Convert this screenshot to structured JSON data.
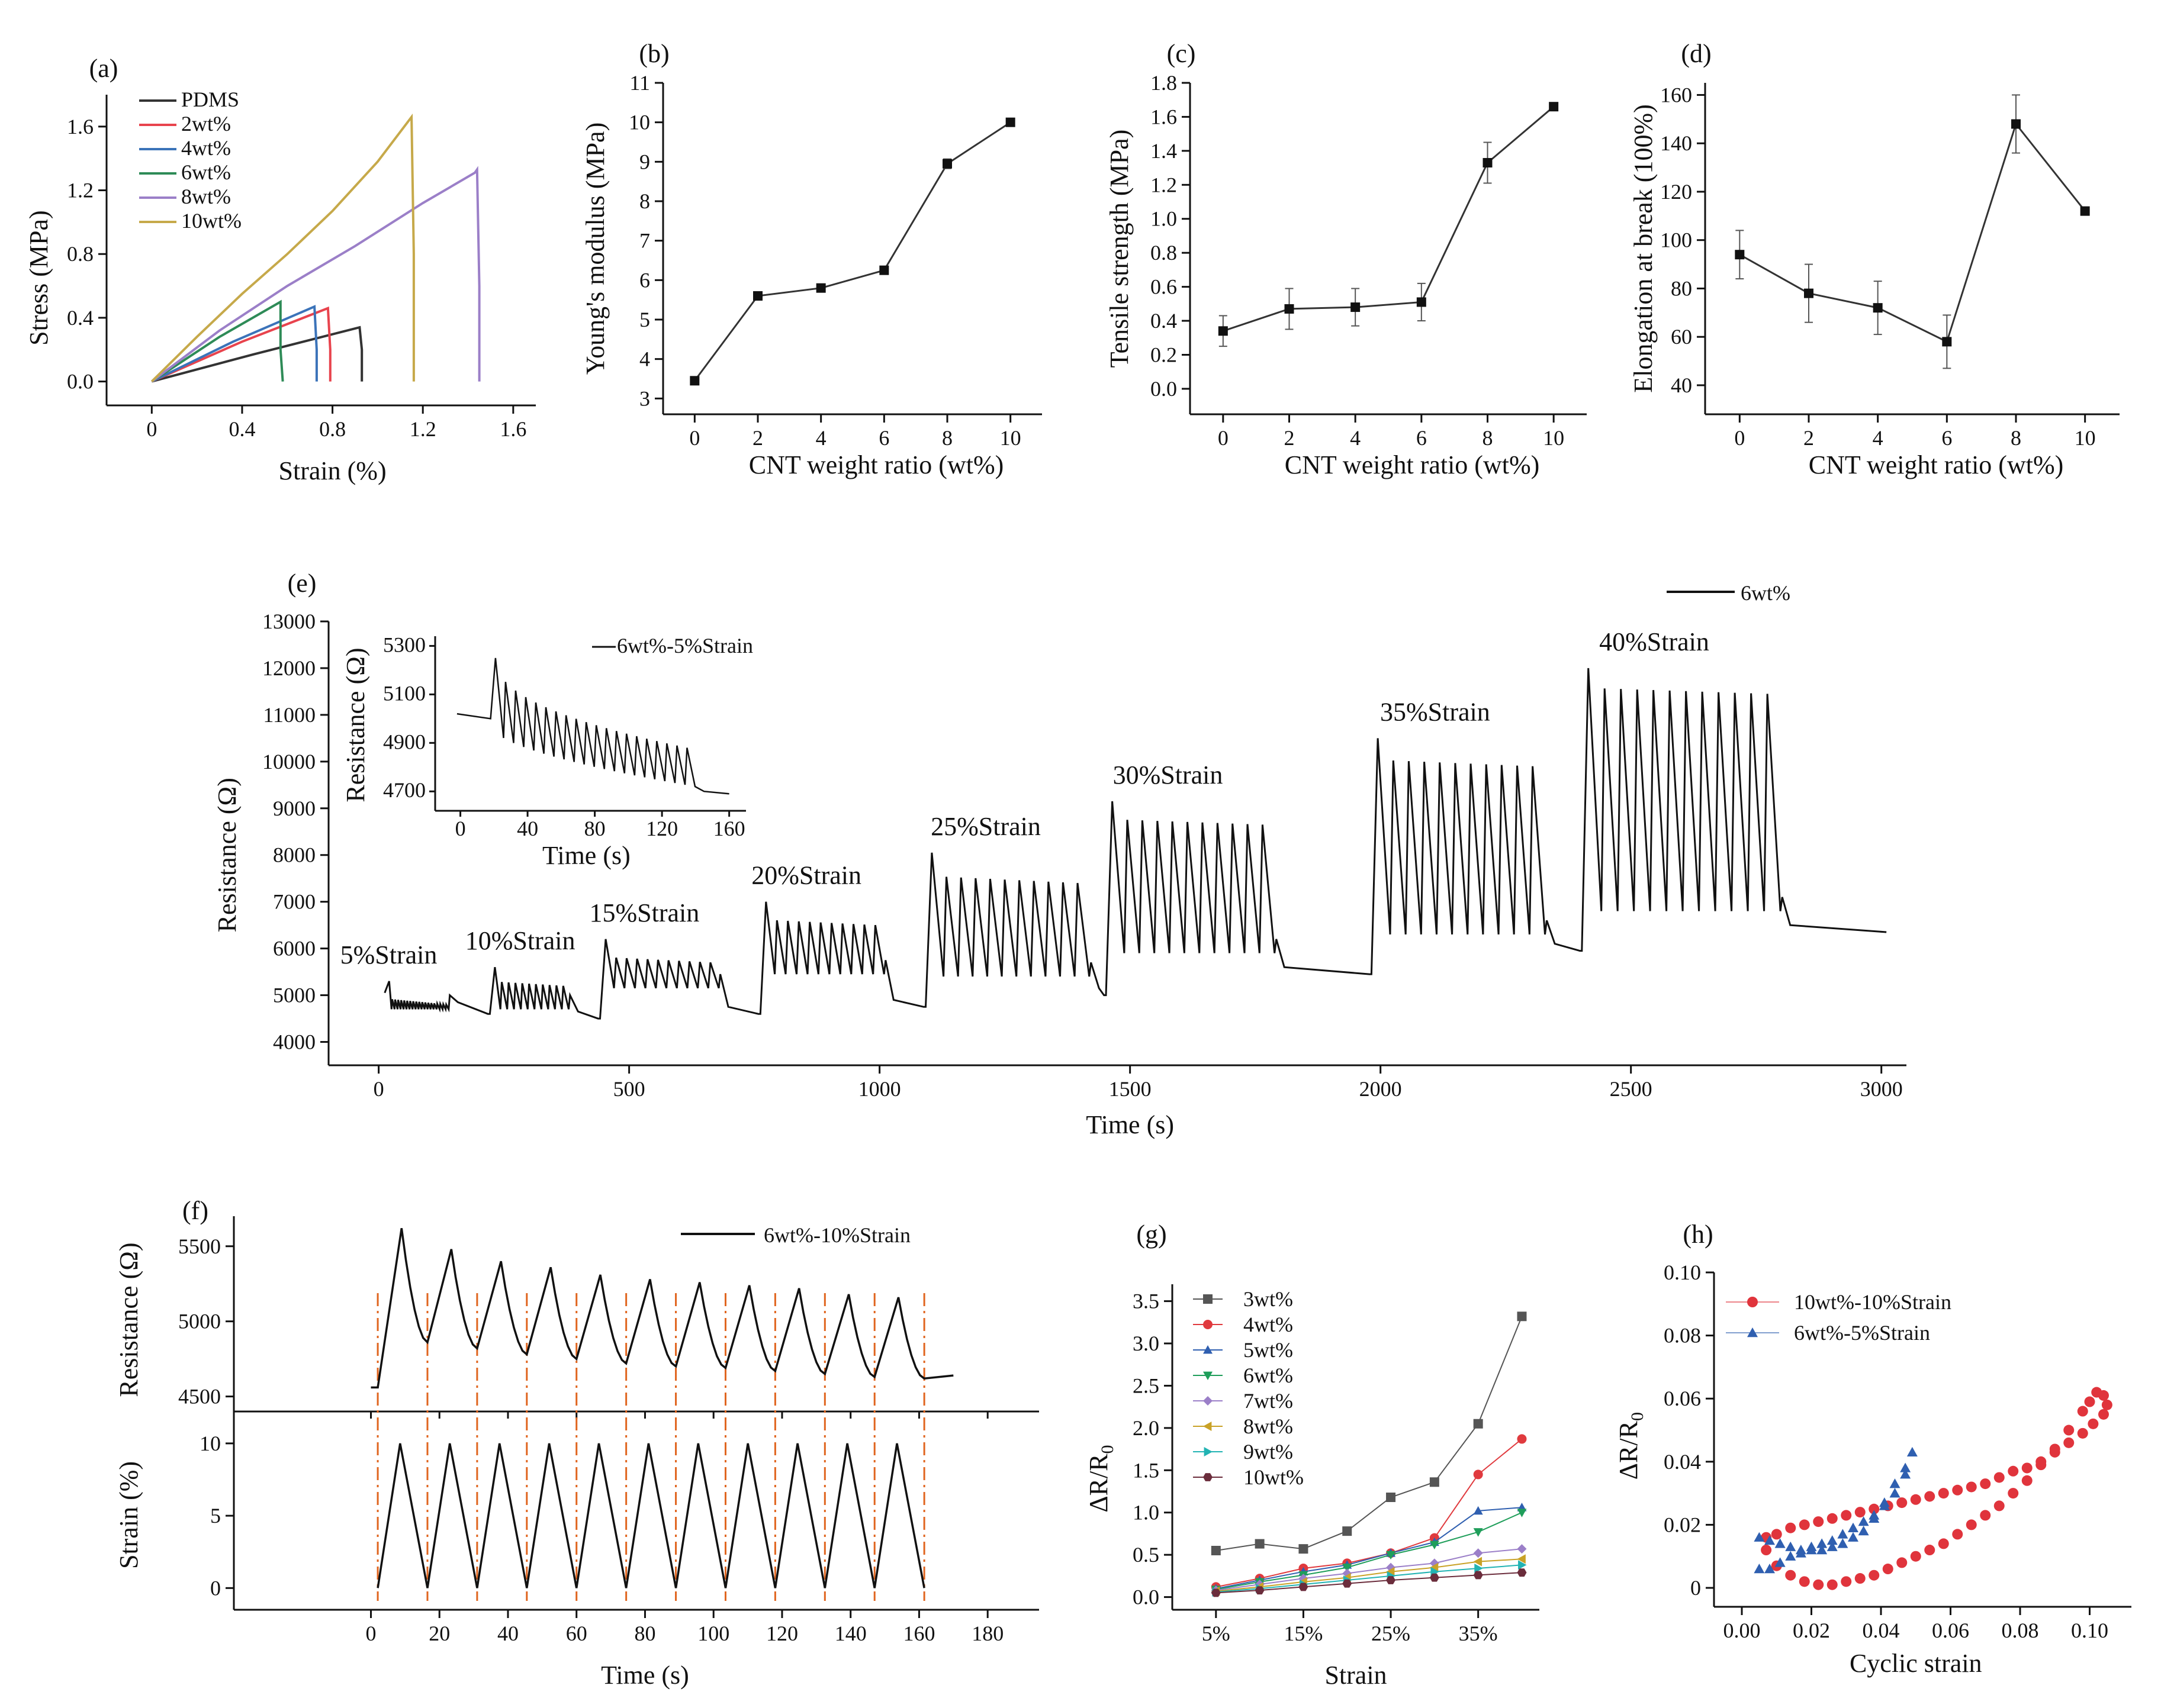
{
  "chart_data": [
    {
      "id": "a",
      "type": "line",
      "panel_label": "(a)",
      "xlabel": "Strain (%)",
      "ylabel": "Stress (MPa)",
      "xlim": [
        -0.2,
        1.7
      ],
      "ylim": [
        -0.15,
        1.8
      ],
      "xticks": [
        0,
        0.4,
        0.8,
        1.2,
        1.6
      ],
      "xtick_labels": [
        "0",
        "0.4",
        "0.8",
        "1.2",
        "1.6"
      ],
      "yticks": [
        0,
        0.4,
        0.8,
        1.2,
        1.6
      ],
      "ytick_labels": [
        "0.0",
        "0.4",
        "0.8",
        "1.2",
        "1.6"
      ],
      "series": [
        {
          "name": "PDMS",
          "color": "#333333",
          "x": [
            0,
            0.45,
            0.92,
            0.93,
            0.93
          ],
          "y": [
            0,
            0.17,
            0.34,
            0.2,
            0
          ]
        },
        {
          "name": "2wt%",
          "color": "#e8434d",
          "x": [
            0,
            0.4,
            0.78,
            0.79,
            0.79
          ],
          "y": [
            0,
            0.25,
            0.46,
            0.2,
            0
          ]
        },
        {
          "name": "4wt%",
          "color": "#3b73b9",
          "x": [
            0,
            0.36,
            0.72,
            0.73,
            0.73
          ],
          "y": [
            0,
            0.25,
            0.47,
            0.2,
            0
          ]
        },
        {
          "name": "6wt%",
          "color": "#2e8b57",
          "x": [
            0,
            0.3,
            0.57,
            0.57,
            0.58
          ],
          "y": [
            0,
            0.28,
            0.5,
            0.2,
            0
          ]
        },
        {
          "name": "8wt%",
          "color": "#9b7fc8",
          "x": [
            0,
            0.3,
            0.6,
            0.9,
            1.2,
            1.43,
            1.44,
            1.45,
            1.45
          ],
          "y": [
            0,
            0.32,
            0.6,
            0.85,
            1.12,
            1.31,
            1.33,
            0.6,
            0
          ]
        },
        {
          "name": "10wt%",
          "color": "#c6a94a",
          "x": [
            0,
            0.2,
            0.4,
            0.6,
            0.8,
            1.0,
            1.15,
            1.16,
            1.16
          ],
          "y": [
            0,
            0.28,
            0.55,
            0.8,
            1.07,
            1.38,
            1.66,
            0.8,
            0
          ]
        }
      ]
    },
    {
      "id": "b",
      "type": "line",
      "panel_label": "(b)",
      "xlabel": "CNT weight ratio (wt%)",
      "ylabel": "Young's modulus (MPa)",
      "xlim": [
        -1,
        11
      ],
      "ylim": [
        2.6,
        11
      ],
      "xticks": [
        0,
        2,
        4,
        6,
        8,
        10
      ],
      "xtick_labels": [
        "0",
        "2",
        "4",
        "6",
        "8",
        "10"
      ],
      "yticks": [
        3,
        4,
        5,
        6,
        7,
        8,
        9,
        10,
        11
      ],
      "ytick_labels": [
        "3",
        "4",
        "5",
        "6",
        "7",
        "8",
        "9",
        "10",
        "11"
      ],
      "x": [
        0,
        2,
        4,
        6,
        8,
        10
      ],
      "y": [
        3.45,
        5.6,
        5.8,
        6.25,
        8.95,
        10.0
      ],
      "err": [
        0.08,
        0.1,
        0.1,
        0.1,
        0.12,
        0.03
      ]
    },
    {
      "id": "c",
      "type": "line",
      "panel_label": "(c)",
      "xlabel": "CNT weight ratio (wt%)",
      "ylabel": "Tensile strength (MPa)",
      "xlim": [
        -1,
        11
      ],
      "ylim": [
        -0.15,
        1.8
      ],
      "xticks": [
        0,
        2,
        4,
        6,
        8,
        10
      ],
      "xtick_labels": [
        "0",
        "2",
        "4",
        "6",
        "8",
        "10"
      ],
      "yticks": [
        0,
        0.2,
        0.4,
        0.6,
        0.8,
        1.0,
        1.2,
        1.4,
        1.6,
        1.8
      ],
      "ytick_labels": [
        "0.0",
        "0.2",
        "0.4",
        "0.6",
        "0.8",
        "1.0",
        "1.2",
        "1.4",
        "1.6",
        "1.8"
      ],
      "x": [
        0,
        2,
        4,
        6,
        8,
        10
      ],
      "y": [
        0.34,
        0.47,
        0.48,
        0.51,
        1.33,
        1.66
      ],
      "err": [
        0.09,
        0.12,
        0.11,
        0.11,
        0.12,
        0.02
      ]
    },
    {
      "id": "d",
      "type": "line",
      "panel_label": "(d)",
      "xlabel": "CNT weight ratio (wt%)",
      "ylabel": "Elongation at break (100%)",
      "xlim": [
        -1,
        11
      ],
      "ylim": [
        28,
        165
      ],
      "xticks": [
        0,
        2,
        4,
        6,
        8,
        10
      ],
      "xtick_labels": [
        "0",
        "2",
        "4",
        "6",
        "8",
        "10"
      ],
      "yticks": [
        40,
        60,
        80,
        100,
        120,
        140,
        160
      ],
      "ytick_labels": [
        "40",
        "60",
        "80",
        "100",
        "120",
        "140",
        "160"
      ],
      "x": [
        0,
        2,
        4,
        6,
        8,
        10
      ],
      "y": [
        94,
        78,
        72,
        58,
        148,
        112
      ],
      "err": [
        10,
        12,
        11,
        11,
        12,
        1
      ]
    },
    {
      "id": "e",
      "type": "line",
      "panel_label": "(e)",
      "xlabel": "Time (s)",
      "ylabel": "Resistance (Ω)",
      "legend": "6wt%",
      "xlim": [
        -100,
        3050
      ],
      "ylim": [
        3500,
        13000
      ],
      "xticks": [
        0,
        500,
        1000,
        1500,
        2000,
        2500,
        3000
      ],
      "xtick_labels": [
        "0",
        "500",
        "1000",
        "1500",
        "2000",
        "2500",
        "3000"
      ],
      "yticks": [
        4000,
        5000,
        6000,
        7000,
        8000,
        9000,
        10000,
        11000,
        12000,
        13000
      ],
      "ytick_labels": [
        "4000",
        "5000",
        "6000",
        "7000",
        "8000",
        "9000",
        "10000",
        "11000",
        "12000",
        "13000"
      ],
      "segments": [
        {
          "label": "5%Strain",
          "t_start": 20,
          "t_end": 140,
          "base": 5050,
          "low": 4700,
          "high": 4800,
          "peak0": 5300,
          "cycles": 20,
          "end_value": 4700
        },
        {
          "label": "10%Strain",
          "t_start": 230,
          "t_end": 380,
          "base": 4600,
          "low": 4700,
          "high": 5200,
          "peak0": 5600,
          "cycles": 11,
          "end_value": 4500
        },
        {
          "label": "15%Strain",
          "t_start": 450,
          "t_end": 680,
          "base": 4500,
          "low": 5150,
          "high": 5700,
          "peak0": 6200,
          "cycles": 11,
          "end_value": 4600
        },
        {
          "label": "20%Strain",
          "t_start": 770,
          "t_end": 1010,
          "base": 4600,
          "low": 5450,
          "high": 6500,
          "peak0": 7000,
          "cycles": 11,
          "end_value": 4750
        },
        {
          "label": "25%Strain",
          "t_start": 1100,
          "t_end": 1420,
          "base": 4750,
          "low": 5400,
          "high": 7400,
          "peak0": 8050,
          "cycles": 11,
          "end_value": 5000
        },
        {
          "label": "30%Strain",
          "t_start": 1460,
          "t_end": 1790,
          "base": 5000,
          "low": 5900,
          "high": 8650,
          "peak0": 9150,
          "cycles": 11,
          "end_value": 5450
        },
        {
          "label": "35%Strain",
          "t_start": 1990,
          "t_end": 2330,
          "base": 5450,
          "low": 6300,
          "high": 9900,
          "peak0": 10500,
          "cycles": 11,
          "end_value": 5950
        },
        {
          "label": "40%Strain",
          "t_start": 2410,
          "t_end": 2800,
          "base": 5950,
          "low": 6800,
          "high": 11450,
          "peak0": 12000,
          "cycles": 12,
          "end_value": 6350
        }
      ],
      "inset": {
        "legend": "6wt%-5%Strain",
        "xlabel": "Time (s)",
        "ylabel": "Resistance (Ω)",
        "xlim": [
          -15,
          170
        ],
        "ylim": [
          4620,
          5340
        ],
        "xticks": [
          0,
          40,
          80,
          120,
          160
        ],
        "xtick_labels": [
          "0",
          "40",
          "80",
          "120",
          "160"
        ],
        "yticks": [
          4700,
          4900,
          5100,
          5300
        ],
        "ytick_labels": [
          "4700",
          "4900",
          "5100",
          "5300"
        ],
        "start_value": 5020,
        "peak0": 5250,
        "cycles": 20,
        "t_first": 20,
        "t_last": 140,
        "end_value": 4690
      }
    },
    {
      "id": "f",
      "type": "line",
      "panel_label": "(f)",
      "legend": "6wt%-10%Strain",
      "xlabel": "Time (s)",
      "ylabel_top": "Resistance (Ω)",
      "ylabel_bottom": "Strain (%)",
      "xlim": [
        -40,
        195
      ],
      "xticks": [
        0,
        20,
        40,
        60,
        80,
        100,
        120,
        140,
        160,
        180
      ],
      "xtick_labels": [
        "0",
        "20",
        "40",
        "60",
        "80",
        "100",
        "120",
        "140",
        "160",
        "180"
      ],
      "top_ylim": [
        4400,
        5700
      ],
      "top_yticks": [
        4500,
        5000,
        5500
      ],
      "top_ytick_labels": [
        "4500",
        "5000",
        "5500"
      ],
      "bottom_ylim": [
        -1.5,
        12
      ],
      "bottom_yticks": [
        0,
        5,
        10
      ],
      "bottom_ytick_labels": [
        "0",
        "5",
        "10"
      ],
      "cycle_starts": [
        2,
        16.5,
        31,
        45.5,
        60,
        74.5,
        89,
        103.5,
        118,
        132.5,
        147,
        161.5
      ],
      "resistance_peaks": [
        5620,
        5480,
        5400,
        5360,
        5310,
        5280,
        5260,
        5240,
        5220,
        5180,
        5160
      ],
      "resistance_troughs": [
        4860,
        4820,
        4780,
        4750,
        4720,
        4700,
        4690,
        4670,
        4650,
        4630,
        4620
      ],
      "strain_peak": 10,
      "end_time": 170,
      "end_resistance": 4640
    },
    {
      "id": "g",
      "type": "line",
      "panel_label": "(g)",
      "xlabel": "Strain",
      "ylabel": "ΔR/R",
      "ylabel_sub": "0",
      "xlim": [
        0,
        42
      ],
      "ylim": [
        -0.15,
        3.7
      ],
      "xticks": [
        5,
        15,
        25,
        35
      ],
      "xtick_labels": [
        "5%",
        "15%",
        "25%",
        "35%"
      ],
      "yticks": [
        0,
        0.5,
        1.0,
        1.5,
        2.0,
        2.5,
        3.0,
        3.5
      ],
      "ytick_labels": [
        "0.0",
        "0.5",
        "1.0",
        "1.5",
        "2.0",
        "2.5",
        "3.0",
        "3.5"
      ],
      "x": [
        5,
        10,
        15,
        20,
        25,
        30,
        35,
        40
      ],
      "series": [
        {
          "name": "3wt%",
          "color": "#555555",
          "marker": "square",
          "values": [
            0.55,
            0.63,
            0.57,
            0.78,
            1.18,
            1.36,
            2.05,
            3.32
          ]
        },
        {
          "name": "4wt%",
          "color": "#e03a3e",
          "marker": "circle",
          "values": [
            0.12,
            0.22,
            0.34,
            0.4,
            0.52,
            0.7,
            1.45,
            1.87
          ]
        },
        {
          "name": "5wt%",
          "color": "#2f5fb0",
          "marker": "triangle",
          "values": [
            0.1,
            0.2,
            0.3,
            0.38,
            0.52,
            0.65,
            1.02,
            1.06
          ]
        },
        {
          "name": "6wt%",
          "color": "#1f9e5a",
          "marker": "triangle-down",
          "values": [
            0.09,
            0.18,
            0.26,
            0.35,
            0.5,
            0.62,
            0.77,
            1.0
          ]
        },
        {
          "name": "7wt%",
          "color": "#9b7fc8",
          "marker": "diamond",
          "values": [
            0.08,
            0.15,
            0.22,
            0.28,
            0.35,
            0.4,
            0.52,
            0.57
          ]
        },
        {
          "name": "8wt%",
          "color": "#c9a227",
          "marker": "triangle-left",
          "values": [
            0.07,
            0.12,
            0.18,
            0.23,
            0.3,
            0.35,
            0.42,
            0.45
          ]
        },
        {
          "name": "9wt%",
          "color": "#22b3b3",
          "marker": "triangle-right",
          "values": [
            0.06,
            0.1,
            0.15,
            0.2,
            0.25,
            0.3,
            0.34,
            0.38
          ]
        },
        {
          "name": "10wt%",
          "color": "#6b2d3c",
          "marker": "hexagon",
          "values": [
            0.05,
            0.08,
            0.12,
            0.16,
            0.2,
            0.23,
            0.26,
            0.29
          ]
        }
      ]
    },
    {
      "id": "h",
      "type": "scatter",
      "panel_label": "(h)",
      "xlabel": "Cyclic strain",
      "ylabel": "ΔR/R",
      "ylabel_sub": "0",
      "xlim": [
        -0.008,
        0.112
      ],
      "ylim": [
        -0.006,
        0.1
      ],
      "xticks": [
        0,
        0.02,
        0.04,
        0.06,
        0.08,
        0.1
      ],
      "xtick_labels": [
        "0.00",
        "0.02",
        "0.04",
        "0.06",
        "0.08",
        "0.10"
      ],
      "yticks": [
        0,
        0.02,
        0.04,
        0.06,
        0.08,
        0.1
      ],
      "ytick_labels": [
        "0",
        "0.02",
        "0.04",
        "0.06",
        "0.08",
        "0.10"
      ],
      "series": [
        {
          "name": "10wt%-10%Strain",
          "color": "#e0343c",
          "marker": "circle",
          "x": [
            0.007,
            0.01,
            0.014,
            0.018,
            0.022,
            0.026,
            0.03,
            0.034,
            0.038,
            0.042,
            0.046,
            0.05,
            0.054,
            0.058,
            0.062,
            0.066,
            0.07,
            0.074,
            0.078,
            0.082,
            0.086,
            0.09,
            0.094,
            0.098,
            0.1,
            0.102,
            0.104,
            0.105,
            0.104,
            0.101,
            0.098,
            0.094,
            0.09,
            0.086,
            0.082,
            0.078,
            0.074,
            0.07,
            0.066,
            0.062,
            0.058,
            0.054,
            0.05,
            0.046,
            0.042,
            0.038,
            0.034,
            0.03,
            0.026,
            0.022,
            0.018,
            0.014,
            0.01,
            0.007
          ],
          "y": [
            0.012,
            0.007,
            0.004,
            0.002,
            0.001,
            0.001,
            0.002,
            0.003,
            0.004,
            0.006,
            0.008,
            0.01,
            0.012,
            0.014,
            0.017,
            0.02,
            0.023,
            0.026,
            0.03,
            0.034,
            0.039,
            0.044,
            0.05,
            0.056,
            0.059,
            0.062,
            0.061,
            0.058,
            0.055,
            0.052,
            0.049,
            0.046,
            0.043,
            0.04,
            0.038,
            0.037,
            0.035,
            0.033,
            0.032,
            0.031,
            0.03,
            0.029,
            0.028,
            0.027,
            0.026,
            0.025,
            0.024,
            0.023,
            0.022,
            0.021,
            0.02,
            0.019,
            0.017,
            0.016
          ]
        },
        {
          "name": "6wt%-5%Strain",
          "color": "#2f5fb0",
          "marker": "triangle",
          "x": [
            0.005,
            0.008,
            0.011,
            0.014,
            0.017,
            0.02,
            0.023,
            0.026,
            0.029,
            0.032,
            0.035,
            0.038,
            0.041,
            0.044,
            0.047,
            0.049,
            0.047,
            0.044,
            0.041,
            0.038,
            0.035,
            0.032,
            0.029,
            0.026,
            0.023,
            0.02,
            0.017,
            0.014,
            0.011,
            0.008,
            0.005
          ],
          "y": [
            0.016,
            0.015,
            0.014,
            0.013,
            0.012,
            0.012,
            0.012,
            0.013,
            0.014,
            0.016,
            0.018,
            0.022,
            0.027,
            0.033,
            0.038,
            0.043,
            0.036,
            0.03,
            0.026,
            0.023,
            0.021,
            0.019,
            0.017,
            0.015,
            0.014,
            0.013,
            0.011,
            0.01,
            0.008,
            0.006,
            0.006
          ]
        }
      ]
    }
  ]
}
